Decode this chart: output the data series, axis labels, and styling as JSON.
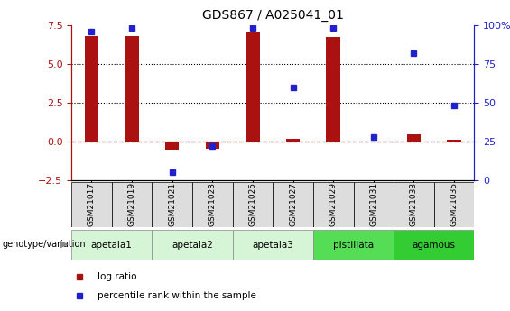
{
  "title": "GDS867 / A025041_01",
  "samples": [
    "GSM21017",
    "GSM21019",
    "GSM21021",
    "GSM21023",
    "GSM21025",
    "GSM21027",
    "GSM21029",
    "GSM21031",
    "GSM21033",
    "GSM21035"
  ],
  "log_ratio": [
    6.8,
    6.8,
    -0.55,
    -0.45,
    7.0,
    0.15,
    6.7,
    -0.05,
    0.45,
    0.1
  ],
  "percentile_rank": [
    96,
    98,
    5,
    22,
    98,
    60,
    98,
    28,
    82,
    48
  ],
  "groups": [
    {
      "label": "apetala1",
      "color": "#d6f5d6",
      "start": 0,
      "end": 2
    },
    {
      "label": "apetala2",
      "color": "#d6f5d6",
      "start": 2,
      "end": 4
    },
    {
      "label": "apetala3",
      "color": "#d6f5d6",
      "start": 4,
      "end": 6
    },
    {
      "label": "pistillata",
      "color": "#55dd55",
      "start": 6,
      "end": 8
    },
    {
      "label": "agamous",
      "color": "#33cc33",
      "start": 8,
      "end": 10
    }
  ],
  "ylim_left": [
    -2.5,
    7.5
  ],
  "ylim_right": [
    0,
    100
  ],
  "yticks_left": [
    -2.5,
    0,
    2.5,
    5.0,
    7.5
  ],
  "yticks_right": [
    0,
    25,
    50,
    75,
    100
  ],
  "ytick_labels_right": [
    "0",
    "25",
    "50",
    "75",
    "100%"
  ],
  "hlines_dotted": [
    2.5,
    5.0
  ],
  "bar_color": "#aa1111",
  "dot_color": "#2222cc",
  "bar_width": 0.35,
  "legend_items": [
    {
      "label": "log ratio",
      "color": "#aa1111"
    },
    {
      "label": "percentile rank within the sample",
      "color": "#2222cc"
    }
  ]
}
